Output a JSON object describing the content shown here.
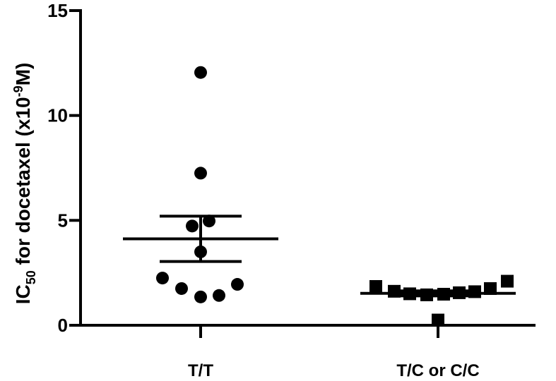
{
  "chart_data": {
    "type": "scatter",
    "ylabel": {
      "prefix": "IC",
      "subscript": "50",
      "middle": " for docetaxel (x10",
      "superscript": "-9",
      "suffix": "M)"
    },
    "ylim": [
      0,
      15
    ],
    "yticks": [
      0,
      5,
      10,
      15
    ],
    "categories": [
      "T/T",
      "T/C or C/C"
    ],
    "grid": false,
    "groups": [
      {
        "category": "T/T",
        "marker": "circle",
        "color": "#000000",
        "values": [
          12.05,
          7.25,
          4.97,
          4.73,
          3.5,
          2.25,
          1.75,
          1.35,
          1.42,
          1.95
        ],
        "mean": 4.12,
        "error_upper": 5.2,
        "error_lower": 3.04
      },
      {
        "category": "T/C or C/C",
        "marker": "square",
        "color": "#000000",
        "values": [
          1.85,
          1.62,
          1.5,
          1.45,
          1.48,
          1.55,
          1.6,
          1.75,
          2.1,
          0.25
        ],
        "mean": 1.52,
        "error_upper": 1.64,
        "error_lower": 1.4
      }
    ]
  }
}
